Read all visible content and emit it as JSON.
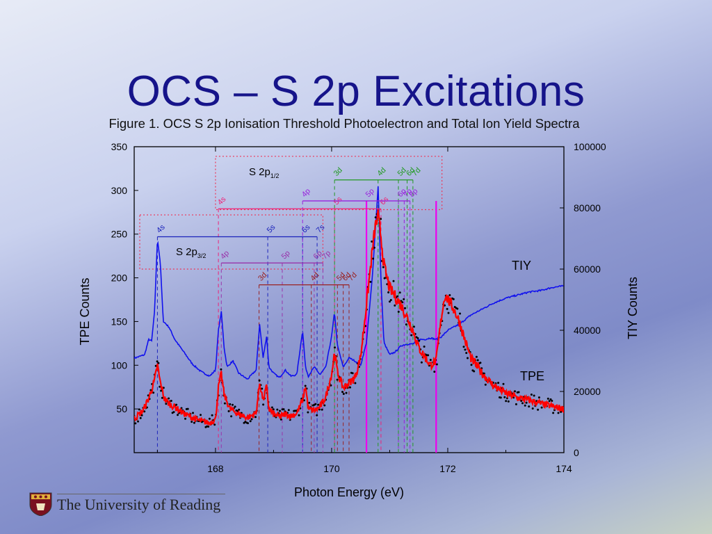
{
  "slide": {
    "title": "OCS – S 2p Excitations",
    "caption": "Figure 1. OCS S 2p Ionisation Threshold Photoelectron and Total Ion Yield Spectra"
  },
  "footer": {
    "institution": "The University of Reading",
    "logo_icon": "university-crest-icon"
  },
  "colors": {
    "tpe_points": "#000000",
    "tpe_smooth": "#ff0000",
    "tiy": "#1010ee",
    "magenta": "#ee00ee",
    "title": "#16148a"
  },
  "chart_data": {
    "type": "line",
    "xlabel": "Photon Energy (eV)",
    "ylabel": "TPE Counts",
    "ylabel_right": "TIY Counts",
    "xlim": [
      166.6,
      174.0
    ],
    "ylim": [
      0,
      350
    ],
    "ylim_right": [
      0,
      100000
    ],
    "xticks": [
      168,
      170,
      172,
      174
    ],
    "yticks": [
      50,
      100,
      150,
      200,
      250,
      300,
      350
    ],
    "yticks_right": [
      0,
      20000,
      40000,
      60000,
      80000,
      100000
    ],
    "series": [
      {
        "name": "TIY",
        "axis": "right",
        "x": [
          166.62,
          166.78,
          166.85,
          166.9,
          166.95,
          167.0,
          167.05,
          167.1,
          167.2,
          167.3,
          167.45,
          167.6,
          167.75,
          167.9,
          168.0,
          168.05,
          168.1,
          168.15,
          168.2,
          168.3,
          168.4,
          168.55,
          168.7,
          168.76,
          168.82,
          168.88,
          168.92,
          169.0,
          169.1,
          169.2,
          169.3,
          169.4,
          169.5,
          169.55,
          169.6,
          169.7,
          169.8,
          169.9,
          170.0,
          170.05,
          170.1,
          170.2,
          170.3,
          170.4,
          170.5,
          170.6,
          170.7,
          170.8,
          170.85,
          170.9,
          171.0,
          171.1,
          171.2,
          171.3,
          171.4,
          171.5,
          171.6,
          171.7,
          171.8,
          171.9,
          172.0,
          172.2,
          172.4,
          172.6,
          172.8,
          173.0,
          173.2,
          173.4,
          173.6,
          173.8,
          174.0
        ],
        "y": [
          31000,
          32000,
          37000,
          36500,
          46000,
          70000,
          62000,
          43000,
          41000,
          37000,
          33000,
          29000,
          26500,
          25000,
          27000,
          40000,
          46000,
          34000,
          28000,
          30000,
          26000,
          24000,
          27000,
          42000,
          31000,
          38000,
          28000,
          26000,
          24500,
          27000,
          25000,
          25500,
          40000,
          28000,
          25000,
          28000,
          25500,
          28000,
          38000,
          46000,
          35000,
          28000,
          31000,
          30000,
          28500,
          36000,
          57000,
          87000,
          56000,
          36000,
          32000,
          33000,
          35000,
          35500,
          35500,
          37000,
          37000,
          37500,
          37000,
          38000,
          40000,
          42000,
          45000,
          47000,
          49000,
          50500,
          51500,
          52500,
          53000,
          54000,
          54500
        ]
      },
      {
        "name": "TPE",
        "axis": "left",
        "x": [
          166.62,
          166.75,
          166.85,
          166.95,
          167.0,
          167.05,
          167.12,
          167.2,
          167.3,
          167.45,
          167.6,
          167.75,
          167.9,
          168.0,
          168.05,
          168.1,
          168.15,
          168.25,
          168.4,
          168.55,
          168.7,
          168.76,
          168.82,
          168.88,
          168.92,
          169.0,
          169.1,
          169.2,
          169.3,
          169.4,
          169.5,
          169.55,
          169.6,
          169.7,
          169.8,
          169.9,
          170.0,
          170.05,
          170.1,
          170.2,
          170.3,
          170.4,
          170.5,
          170.6,
          170.7,
          170.75,
          170.8,
          170.85,
          170.9,
          170.95,
          171.0,
          171.1,
          171.2,
          171.3,
          171.4,
          171.5,
          171.6,
          171.7,
          171.8,
          171.9,
          171.95,
          172.0,
          172.05,
          172.1,
          172.2,
          172.3,
          172.4,
          172.6,
          172.8,
          173.0,
          173.2,
          173.4,
          173.6,
          173.8,
          174.0
        ],
        "y": [
          40,
          48,
          62,
          82,
          100,
          80,
          62,
          56,
          52,
          45,
          40,
          36,
          34,
          38,
          74,
          90,
          66,
          50,
          44,
          40,
          45,
          80,
          60,
          75,
          50,
          44,
          41,
          44,
          42,
          45,
          60,
          76,
          50,
          48,
          52,
          64,
          90,
          115,
          92,
          74,
          80,
          85,
          110,
          170,
          230,
          258,
          270,
          248,
          215,
          200,
          188,
          178,
          168,
          155,
          140,
          120,
          110,
          100,
          105,
          160,
          180,
          176,
          170,
          165,
          150,
          128,
          108,
          90,
          76,
          68,
          63,
          60,
          56,
          53,
          50
        ]
      }
    ],
    "peak_labels": {
      "S 2p3/2 ns (blue)": [
        {
          "label": "4s",
          "x": 167.0
        },
        {
          "label": "5s",
          "x": 168.9
        },
        {
          "label": "6s",
          "x": 169.5
        },
        {
          "label": "7s",
          "x": 169.75
        }
      ],
      "S 2p3/2 np (purple)": [
        {
          "label": "4p",
          "x": 168.1
        },
        {
          "label": "5p",
          "x": 169.15
        },
        {
          "label": "6p",
          "x": 169.7
        },
        {
          "label": "7p",
          "x": 169.85
        }
      ],
      "S 2p3/2 nd (dark red)": [
        {
          "label": "3d",
          "x": 168.75
        },
        {
          "label": "4d",
          "x": 169.65
        },
        {
          "label": "5d",
          "x": 170.1
        },
        {
          "label": "6d",
          "x": 170.2
        },
        {
          "label": "7d",
          "x": 170.3
        }
      ],
      "S 2p1/2 ns (magenta)": [
        {
          "label": "4s",
          "x": 168.05
        },
        {
          "label": "5s",
          "x": 170.05
        },
        {
          "label": "6s",
          "x": 170.85
        }
      ],
      "S 2p1/2 np (violet)": [
        {
          "label": "4p",
          "x": 169.5
        },
        {
          "label": "5p",
          "x": 170.6
        },
        {
          "label": "6p",
          "x": 171.15
        },
        {
          "label": "7p",
          "x": 171.25
        },
        {
          "label": "8p",
          "x": 171.35
        }
      ],
      "S 2p1/2 nd (green)": [
        {
          "label": "3d",
          "x": 170.05
        },
        {
          "label": "4d",
          "x": 170.8
        },
        {
          "label": "5d",
          "x": 171.15
        },
        {
          "label": "6d",
          "x": 171.3
        },
        {
          "label": "7d",
          "x": 171.4
        }
      ]
    },
    "group_labels": {
      "sub": "S 2p",
      "half": "1/2",
      "threehalf": "3/2"
    },
    "annotations": {
      "tiy": "TIY",
      "tpe": "TPE"
    },
    "thresholds_x": [
      170.6,
      171.8
    ]
  }
}
